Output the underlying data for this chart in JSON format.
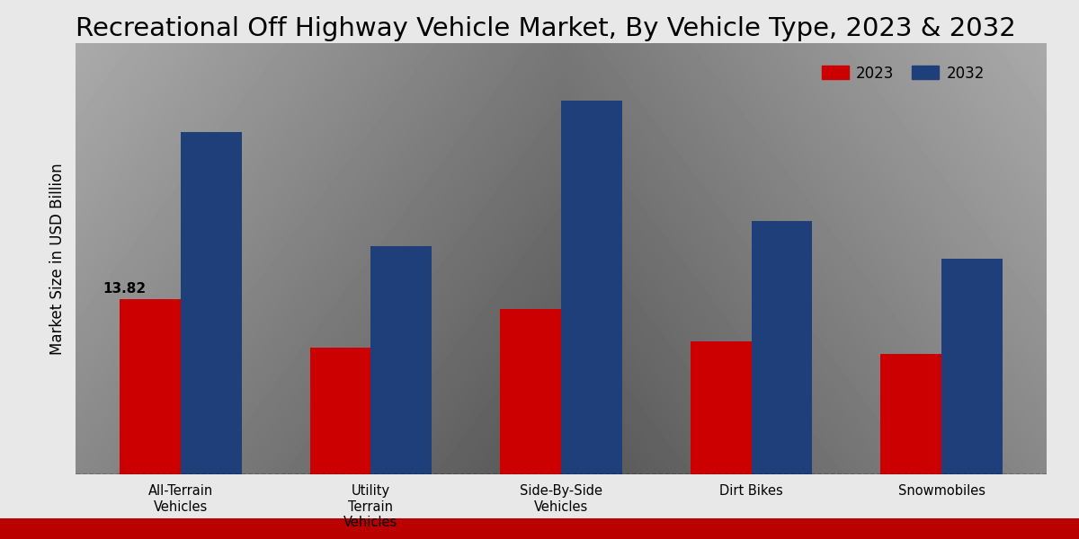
{
  "title": "Recreational Off Highway Vehicle Market, By Vehicle Type, 2023 & 2032",
  "ylabel": "Market Size in USD Billion",
  "categories": [
    "All-Terrain\nVehicles",
    "Utility\nTerrain\nVehicles",
    "Side-By-Side\nVehicles",
    "Dirt Bikes",
    "Snowmobiles"
  ],
  "values_2023": [
    13.82,
    10.0,
    13.0,
    10.5,
    9.5
  ],
  "values_2032": [
    27.0,
    18.0,
    29.5,
    20.0,
    17.0
  ],
  "color_2023": "#cc0000",
  "color_2032": "#1f3f7a",
  "annotation_value": "13.82",
  "annotation_index": 0,
  "legend_labels": [
    "2023",
    "2032"
  ],
  "bar_width": 0.32,
  "ylim": [
    0,
    34
  ],
  "bg_color_light": "#e8e8e8",
  "bg_color_dark": "#c8c8c8",
  "bottom_bar_color": "#bb0000",
  "title_fontsize": 21,
  "axis_label_fontsize": 12,
  "tick_fontsize": 10.5,
  "legend_fontsize": 12,
  "annotation_fontsize": 11
}
